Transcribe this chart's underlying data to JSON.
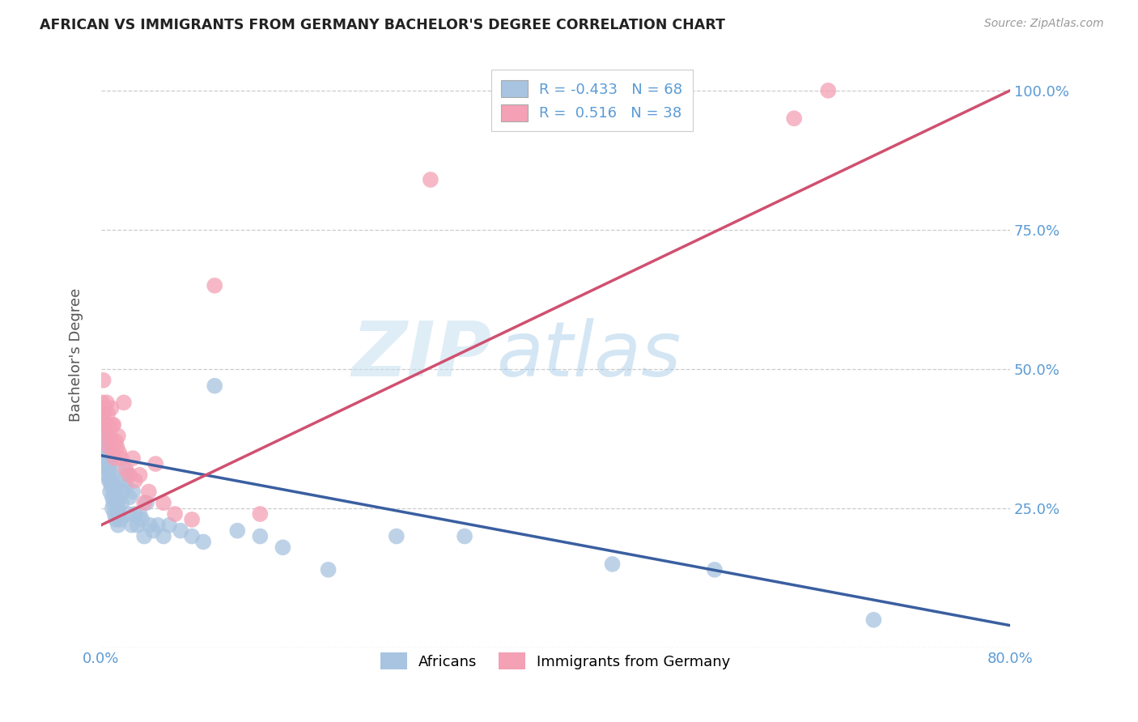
{
  "title": "AFRICAN VS IMMIGRANTS FROM GERMANY BACHELOR'S DEGREE CORRELATION CHART",
  "source": "Source: ZipAtlas.com",
  "ylabel": "Bachelor's Degree",
  "watermark_zip": "ZIP",
  "watermark_atlas": "atlas",
  "legend_blue_r": "-0.433",
  "legend_blue_n": "68",
  "legend_pink_r": "0.516",
  "legend_pink_n": "38",
  "legend_label_blue": "Africans",
  "legend_label_pink": "Immigrants from Germany",
  "blue_color": "#a8c4e0",
  "blue_line_color": "#3a5fa0",
  "pink_color": "#f4a0b5",
  "pink_line_color": "#d05070",
  "axis_label_color": "#5b9bd5",
  "blue_x": [
    0.001,
    0.002,
    0.002,
    0.003,
    0.003,
    0.004,
    0.004,
    0.005,
    0.005,
    0.005,
    0.006,
    0.006,
    0.007,
    0.007,
    0.007,
    0.008,
    0.008,
    0.008,
    0.009,
    0.009,
    0.01,
    0.01,
    0.01,
    0.011,
    0.011,
    0.012,
    0.012,
    0.013,
    0.013,
    0.014,
    0.015,
    0.015,
    0.016,
    0.017,
    0.018,
    0.019,
    0.02,
    0.021,
    0.022,
    0.023,
    0.024,
    0.025,
    0.027,
    0.028,
    0.03,
    0.032,
    0.034,
    0.036,
    0.038,
    0.04,
    0.043,
    0.046,
    0.05,
    0.055,
    0.06,
    0.07,
    0.08,
    0.09,
    0.1,
    0.12,
    0.14,
    0.16,
    0.2,
    0.26,
    0.32,
    0.45,
    0.54,
    0.68
  ],
  "blue_y": [
    0.38,
    0.42,
    0.36,
    0.4,
    0.35,
    0.38,
    0.33,
    0.37,
    0.34,
    0.32,
    0.35,
    0.31,
    0.34,
    0.32,
    0.3,
    0.33,
    0.3,
    0.28,
    0.31,
    0.29,
    0.3,
    0.27,
    0.25,
    0.29,
    0.26,
    0.28,
    0.24,
    0.27,
    0.23,
    0.26,
    0.25,
    0.22,
    0.24,
    0.23,
    0.26,
    0.28,
    0.32,
    0.3,
    0.29,
    0.31,
    0.24,
    0.27,
    0.22,
    0.28,
    0.24,
    0.22,
    0.24,
    0.23,
    0.2,
    0.26,
    0.22,
    0.21,
    0.22,
    0.2,
    0.22,
    0.21,
    0.2,
    0.19,
    0.47,
    0.21,
    0.2,
    0.18,
    0.14,
    0.2,
    0.2,
    0.15,
    0.14,
    0.05
  ],
  "pink_x": [
    0.001,
    0.002,
    0.002,
    0.003,
    0.004,
    0.005,
    0.005,
    0.006,
    0.007,
    0.007,
    0.008,
    0.009,
    0.01,
    0.01,
    0.011,
    0.012,
    0.013,
    0.014,
    0.015,
    0.016,
    0.018,
    0.02,
    0.022,
    0.025,
    0.028,
    0.03,
    0.034,
    0.038,
    0.042,
    0.048,
    0.055,
    0.065,
    0.08,
    0.1,
    0.14,
    0.29,
    0.61,
    0.64
  ],
  "pink_y": [
    0.44,
    0.41,
    0.48,
    0.43,
    0.4,
    0.44,
    0.38,
    0.42,
    0.4,
    0.36,
    0.38,
    0.43,
    0.4,
    0.36,
    0.4,
    0.34,
    0.37,
    0.36,
    0.38,
    0.35,
    0.34,
    0.44,
    0.32,
    0.31,
    0.34,
    0.3,
    0.31,
    0.26,
    0.28,
    0.33,
    0.26,
    0.24,
    0.23,
    0.65,
    0.24,
    0.84,
    0.95,
    1.0
  ],
  "xlim": [
    0.0,
    0.8
  ],
  "ylim": [
    0.0,
    1.05
  ],
  "yticks": [
    0.0,
    0.25,
    0.5,
    0.75,
    1.0
  ],
  "ytick_labels": [
    "",
    "25.0%",
    "50.0%",
    "75.0%",
    "100.0%"
  ],
  "xticks": [
    0.0,
    0.8
  ],
  "xtick_labels": [
    "0.0%",
    "80.0%"
  ],
  "grid_color": "#cccccc",
  "background_color": "#ffffff"
}
